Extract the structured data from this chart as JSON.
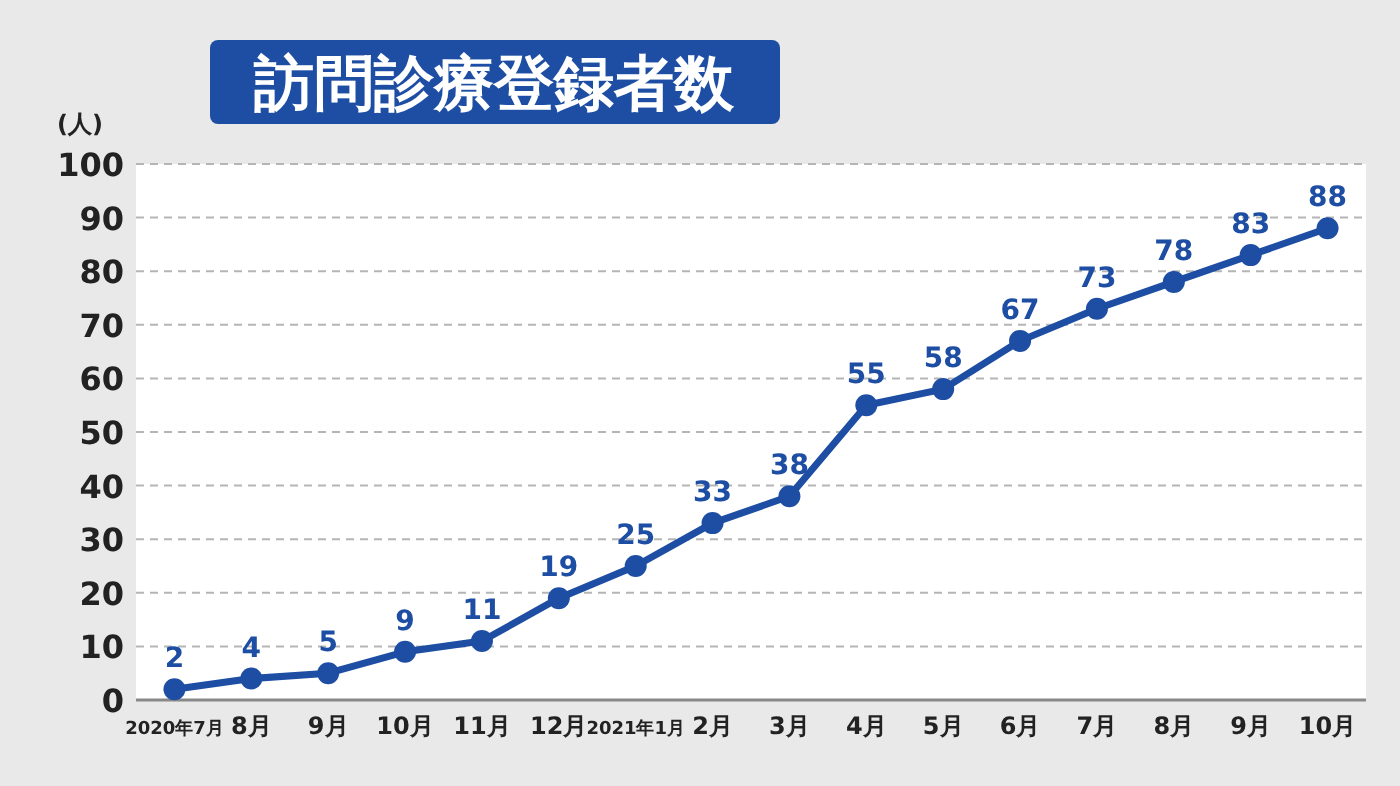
{
  "chart_data": {
    "type": "line",
    "title": "訪問診療登録者数",
    "ylabel": "(人)",
    "categories": [
      "2020年7月",
      "8月",
      "9月",
      "10月",
      "11月",
      "12月",
      "2021年1月",
      "2月",
      "3月",
      "4月",
      "5月",
      "6月",
      "7月",
      "8月",
      "9月",
      "10月"
    ],
    "series": [
      {
        "color": "#1d4ea3",
        "values": [
          2,
          4,
          5,
          9,
          11,
          19,
          25,
          33,
          38,
          55,
          58,
          67,
          73,
          78,
          83,
          88
        ]
      }
    ],
    "ylim": [
      0,
      100
    ],
    "yticks": [
      0,
      10,
      20,
      30,
      40,
      50,
      60,
      70,
      80,
      90,
      100
    ],
    "grid": "y",
    "marker": "circle",
    "line_style": "solid",
    "data_labels": true
  }
}
